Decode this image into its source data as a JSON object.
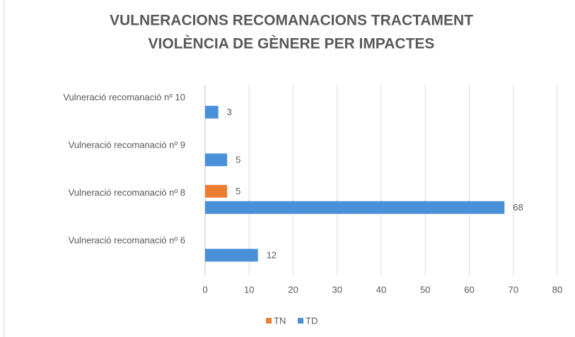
{
  "chart_data": {
    "type": "hbar",
    "title": [
      "VULNERACIONS RECOMANACIONS TRACTAMENT",
      "VIOLÈNCIA DE GÈNERE PER IMPACTES"
    ],
    "categories": [
      "Vulneració recomanació nº 10",
      "Vulneració recomanació nº 9",
      "Vulneració recomanació nº 8",
      "Vulneració recomanació nº 6"
    ],
    "series": [
      {
        "name": "TN",
        "color": "#ed7d31",
        "values": [
          null,
          null,
          5,
          null
        ]
      },
      {
        "name": "TD",
        "color": "#4a90d9",
        "values": [
          3,
          5,
          68,
          12
        ]
      }
    ],
    "xlim": [
      0,
      80
    ],
    "xticks": [
      0,
      10,
      20,
      30,
      40,
      50,
      60,
      70,
      80
    ],
    "grid": true,
    "legend": "bottom"
  }
}
